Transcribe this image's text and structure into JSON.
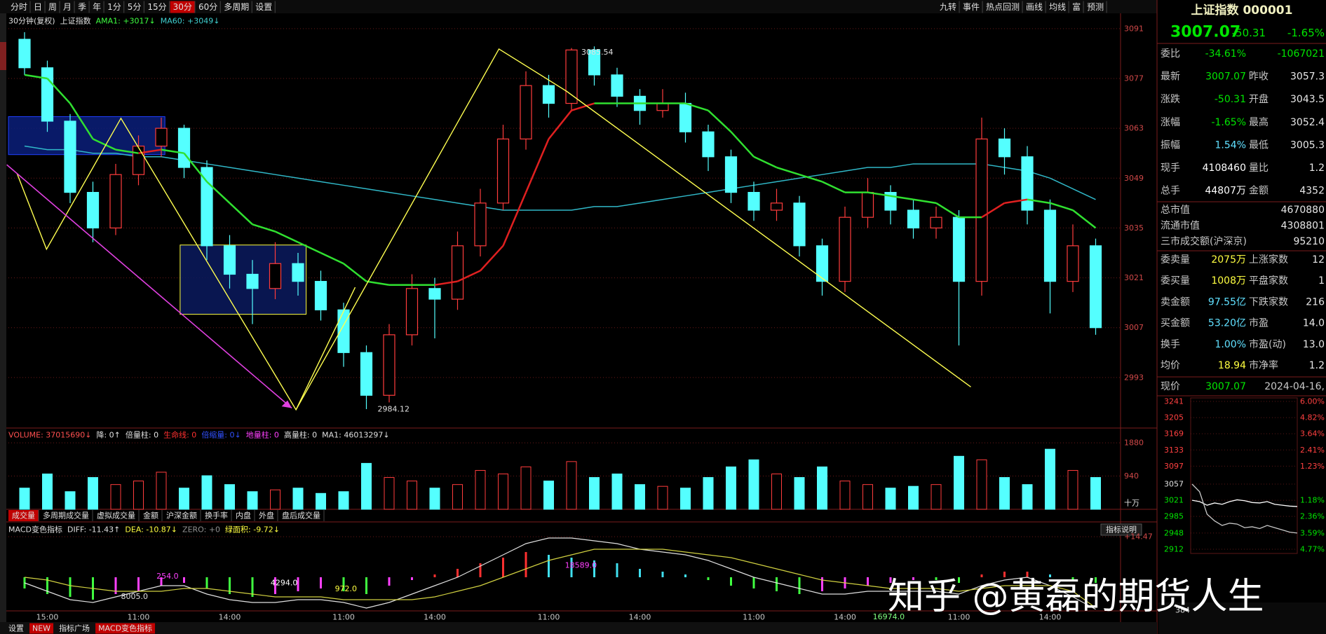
{
  "toolbar": {
    "left": [
      "分时",
      "日",
      "周",
      "月",
      "季",
      "年",
      "1分",
      "5分",
      "15分",
      {
        "text": "30分",
        "selected": true
      },
      "60分",
      "多周期",
      "设置"
    ],
    "right": [
      "九转",
      "事件",
      "热点回测",
      "画线",
      "均线",
      "富",
      "预测"
    ]
  },
  "main_chart": {
    "type": "candlestick",
    "legend": [
      {
        "text": "30分钟(复权)",
        "color": "#e0e0e0"
      },
      {
        "text": "上证指数",
        "color": "#e0e0e0"
      },
      {
        "text": "AMA1: +3017↓",
        "color": "#40ff40"
      },
      {
        "text": "MA60: +3049↓",
        "color": "#40d0d0"
      }
    ],
    "ylim": [
      2979,
      3095.1
    ],
    "yticks": [
      2993,
      3007,
      3021,
      3035,
      3049,
      3063,
      3077,
      3091
    ],
    "categories": [
      null,
      "15:00",
      null,
      null,
      null,
      "11:00",
      null,
      null,
      null,
      "14:00",
      null,
      null,
      null,
      null,
      "11:00",
      null,
      null,
      null,
      "14:00",
      null,
      null,
      null,
      null,
      "11:00",
      null,
      null,
      null,
      "14:00",
      null,
      null,
      null,
      null,
      "11:00",
      null,
      null,
      null,
      "14:00",
      null,
      null,
      null,
      null,
      "11:00",
      null,
      null,
      null,
      "14:00",
      null,
      null
    ],
    "candles": [
      [
        3088,
        3090,
        3078,
        3080
      ],
      [
        3080,
        3082,
        3062,
        3065
      ],
      [
        3065,
        3067,
        3042,
        3045
      ],
      [
        3045,
        3048,
        3031,
        3035
      ],
      [
        3035,
        3053,
        3033,
        3050
      ],
      [
        3050,
        3061,
        3047,
        3058
      ],
      [
        3058,
        3066,
        3055,
        3063
      ],
      [
        3063,
        3064,
        3049,
        3052
      ],
      [
        3052,
        3054,
        3026,
        3030
      ],
      [
        3030,
        3033,
        3018,
        3022
      ],
      [
        3022,
        3026,
        3008,
        3018
      ],
      [
        3018,
        3031,
        3015,
        3025
      ],
      [
        3025,
        3028,
        3016,
        3020
      ],
      [
        3020,
        3023,
        3009,
        3012
      ],
      [
        3012,
        3014,
        2996,
        3000
      ],
      [
        3000,
        3002,
        2984.12,
        2988
      ],
      [
        2988,
        3008,
        2986,
        3005
      ],
      [
        3005,
        3022,
        3002,
        3018
      ],
      [
        3018,
        3021,
        3004,
        3015
      ],
      [
        3015,
        3034,
        3012,
        3030
      ],
      [
        3030,
        3046,
        3027,
        3042
      ],
      [
        3042,
        3064,
        3040,
        3060
      ],
      [
        3060,
        3079,
        3057,
        3075
      ],
      [
        3075,
        3078,
        3066,
        3070
      ],
      [
        3070,
        3085.54,
        3068,
        3085
      ],
      [
        3085,
        3086,
        3075,
        3078
      ],
      [
        3078,
        3080,
        3069,
        3072
      ],
      [
        3072,
        3074,
        3064,
        3068
      ],
      [
        3068,
        3074,
        3066,
        3070
      ],
      [
        3070,
        3073,
        3059,
        3062
      ],
      [
        3062,
        3064,
        3051,
        3055
      ],
      [
        3055,
        3057,
        3042,
        3045
      ],
      [
        3045,
        3048,
        3037,
        3040
      ],
      [
        3040,
        3046,
        3037,
        3042
      ],
      [
        3042,
        3044,
        3027,
        3030
      ],
      [
        3030,
        3032,
        3016,
        3020
      ],
      [
        3020,
        3041,
        3017,
        3038
      ],
      [
        3038,
        3049,
        3035,
        3045
      ],
      [
        3045,
        3047,
        3036,
        3040
      ],
      [
        3040,
        3043,
        3032,
        3035
      ],
      [
        3035,
        3041,
        3032,
        3038
      ],
      [
        3038,
        3040,
        3002,
        3020
      ],
      [
        3020,
        3066,
        3016,
        3060
      ],
      [
        3060,
        3063,
        3050,
        3055
      ],
      [
        3055,
        3058,
        3036,
        3040
      ],
      [
        3040,
        3043,
        3011,
        3020
      ],
      [
        3020,
        3036,
        3017,
        3030
      ],
      [
        3030,
        3032,
        3005,
        3007
      ]
    ],
    "up_color": "#ff3c3c",
    "down_color": "#54ffff",
    "ama1": {
      "color": "#30e030",
      "rise_color": "#e02020",
      "values": [
        3078,
        3077,
        3070,
        3060,
        3057,
        3056,
        3057,
        3056,
        3048,
        3042,
        3036,
        3034,
        3031,
        3028,
        3025,
        3020,
        3019,
        3019,
        3019,
        3020,
        3023,
        3030,
        3045,
        3060,
        3068,
        3070,
        3070,
        3070,
        3070,
        3070,
        3068,
        3062,
        3055,
        3052,
        3050,
        3048,
        3045,
        3045,
        3044,
        3043,
        3042,
        3038,
        3038,
        3042,
        3043,
        3042,
        3040,
        3035
      ]
    },
    "ma60": {
      "color": "#30b8c8",
      "values": [
        3058,
        3057,
        3057,
        3056,
        3056,
        3055,
        3055,
        3054,
        3053,
        3052,
        3051,
        3050,
        3049,
        3048,
        3047,
        3046,
        3045,
        3044,
        3043,
        3042,
        3041,
        3040,
        3040,
        3040,
        3040,
        3041,
        3041,
        3042,
        3043,
        3044,
        3045,
        3046,
        3047,
        3048,
        3049,
        3050,
        3051,
        3052,
        3052,
        3053,
        3053,
        3053,
        3053,
        3052,
        3051,
        3049,
        3046,
        3043
      ]
    },
    "high_label": 3085.54,
    "low_label": 2984.12
  },
  "volume_chart": {
    "type": "bar",
    "legend": [
      {
        "text": "VOLUME: 37015690↓",
        "color": "#ff5050"
      },
      {
        "text": "降: 0↑",
        "color": "#e0e0e0"
      },
      {
        "text": "倍量柱: 0",
        "color": "#e0e0e0"
      },
      {
        "text": "生命线: 0",
        "color": "#ff3030"
      },
      {
        "text": "倍缩量: 0↓",
        "color": "#3050ff"
      },
      {
        "text": "地量柱: 0",
        "color": "#ff40ff"
      },
      {
        "text": "高量柱: 0",
        "color": "#e0e0e0"
      },
      {
        "text": "MA1: 46013297↓",
        "color": "#e0e0e0"
      }
    ],
    "ylim": [
      0,
      2100
    ],
    "yticks": [
      940,
      1880
    ],
    "unit": "十万",
    "values": [
      600,
      1000,
      500,
      900,
      700,
      800,
      1050,
      600,
      950,
      700,
      500,
      550,
      600,
      450,
      500,
      1300,
      900,
      800,
      600,
      700,
      1100,
      1000,
      1200,
      800,
      1350,
      900,
      1000,
      700,
      650,
      600,
      900,
      1200,
      1400,
      1000,
      900,
      1200,
      800,
      700,
      600,
      650,
      700,
      1500,
      1400,
      900,
      700,
      1700,
      1100,
      900
    ],
    "tabs": [
      {
        "text": "成交量",
        "selected": true
      },
      "多周期成交量",
      "虚拟成交量",
      "金额",
      "沪深金额",
      "换手率",
      "内盘",
      "外盘",
      "盘后成交量"
    ]
  },
  "macd_chart": {
    "type": "macd",
    "legend": [
      {
        "text": "MACD变色指标",
        "color": "#e0e0e0"
      },
      {
        "text": "DIFF: -11.43↑",
        "color": "#e0e0e0"
      },
      {
        "text": "DEA: -10.87↓",
        "color": "#ffff40"
      },
      {
        "text": "ZERO: +0",
        "color": "#909090"
      },
      {
        "text": "绿面积: -9.72↓",
        "color": "#ffff40"
      }
    ],
    "button": "指标说明",
    "ylim": [
      -12,
      18.5
    ],
    "yticks": [
      {
        "value": 14.47,
        "label": "+14.47"
      }
    ],
    "hist": [
      -4,
      -6,
      -7,
      -8,
      -6,
      -5,
      -3,
      -2,
      -4,
      -6,
      -7,
      -6,
      -5,
      -4,
      -5,
      -6,
      -3,
      -1,
      1,
      3,
      5,
      7,
      9,
      8,
      7,
      6,
      5,
      3,
      2,
      1,
      -1,
      -3,
      -4,
      -5,
      -6,
      -5,
      -4,
      -3,
      -2,
      -1,
      -1,
      -2,
      1,
      2,
      2,
      1,
      -1,
      -2
    ],
    "diff": {
      "color": "#e0e0e0",
      "values": [
        -2,
        -5,
        -8,
        -9,
        -7,
        -5,
        -3,
        -3,
        -6,
        -8,
        -9,
        -9,
        -8,
        -8,
        -9,
        -11,
        -9,
        -6,
        -3,
        0,
        4,
        8,
        12,
        14,
        14,
        13,
        12,
        10,
        9,
        8,
        6,
        3,
        0,
        -2,
        -4,
        -6,
        -6,
        -5,
        -5,
        -5,
        -5,
        -6,
        -3,
        -1,
        0,
        -3,
        -7,
        -11.43
      ]
    },
    "dea": {
      "color": "#d0d040",
      "values": [
        0,
        -1,
        -3,
        -4,
        -5,
        -5,
        -5,
        -4,
        -4,
        -5,
        -6,
        -7,
        -7,
        -7,
        -8,
        -8,
        -8,
        -8,
        -7,
        -5,
        -3,
        0,
        3,
        6,
        8,
        10,
        10,
        10,
        10,
        9,
        8,
        7,
        5,
        3,
        1,
        -1,
        -2,
        -3,
        -4,
        -4,
        -4,
        -5,
        -4,
        -3,
        -3,
        -3,
        -5,
        -10.87
      ]
    },
    "annotations": [
      {
        "text": "8005.0",
        "color": "#e0e0e0"
      },
      {
        "text": "254.0",
        "color": "#ff40ff"
      },
      {
        "text": "4294.0",
        "color": "#ffffff"
      },
      {
        "text": "972.0",
        "color": "#ffff40"
      },
      {
        "text": "18589.0",
        "color": "#ff40ff"
      },
      {
        "text": "16974.0",
        "color": "#80ff80"
      }
    ]
  },
  "footer": [
    "设置",
    {
      "text": "NEW",
      "badge": true
    },
    "指标广场",
    {
      "text": "MACD变色指标",
      "selected": true
    }
  ],
  "quote": {
    "title": "上证指数 000001",
    "price": "3007.07",
    "change": "-50.31",
    "pct": "-1.65%",
    "group1": [
      {
        "cells": [
          "委比",
          "-34.61%",
          "-1067021"
        ],
        "color": "#00e600"
      },
      {
        "cells": [
          "最新",
          "3007.07",
          "昨收",
          "3057.3"
        ],
        "color": "#00e600"
      },
      {
        "cells": [
          "涨跌",
          "-50.31",
          "开盘",
          "3043.5"
        ],
        "color": "#00e600"
      },
      {
        "cells": [
          "涨幅",
          "-1.65%",
          "最高",
          "3052.4"
        ],
        "color": "#00e600"
      },
      {
        "cells": [
          "振幅",
          "1.54%",
          "最低",
          "3005.3"
        ],
        "color": "#60e0ff"
      },
      {
        "cells": [
          "现手",
          "4108460",
          "量比",
          "1.2"
        ],
        "color": "#ffffff"
      },
      {
        "cells": [
          "总手",
          "44807万",
          "金额",
          "4352"
        ],
        "color": "#ffffff"
      }
    ],
    "group2": [
      {
        "cells": [
          "总市值",
          "4670880"
        ]
      },
      {
        "cells": [
          "流通市值",
          "4308801"
        ]
      },
      {
        "cells": [
          "三市成交额(沪深京)",
          "95210"
        ]
      }
    ],
    "group3": [
      {
        "cells": [
          "委卖量",
          "2075万",
          "上涨家数",
          "12"
        ],
        "color": "#ffff40"
      },
      {
        "cells": [
          "委买量",
          "1008万",
          "平盘家数",
          "1"
        ],
        "color": "#ffff40"
      },
      {
        "cells": [
          "卖金额",
          "97.55亿",
          "下跌家数",
          "216"
        ],
        "color": "#60e0ff"
      },
      {
        "cells": [
          "买金额",
          "53.20亿",
          "市盈",
          "14.0"
        ],
        "color": "#60e0ff"
      },
      {
        "cells": [
          "换手",
          "1.00%",
          "市盈(动)",
          "13.0"
        ],
        "color": "#60e0ff"
      },
      {
        "cells": [
          "均价",
          "18.94",
          "市净率",
          "1.2"
        ],
        "color": "#ffff40"
      }
    ],
    "now": {
      "cells": [
        "现价",
        "3007.07",
        "2024-04-16,"
      ],
      "color": "#00e600"
    }
  },
  "mini_chart": {
    "type": "line",
    "ylim": [
      2912,
      3241
    ],
    "rows": [
      {
        "price": 3241,
        "pct": "6.00%",
        "color": "#ff4040"
      },
      {
        "price": 3205,
        "pct": "4.82%",
        "color": "#ff4040"
      },
      {
        "price": 3169,
        "pct": "3.64%",
        "color": "#ff4040"
      },
      {
        "price": 3133,
        "pct": "2.41%",
        "color": "#ff4040"
      },
      {
        "price": 3097,
        "pct": "1.23%",
        "color": "#ff4040"
      },
      {
        "price": 3057
      },
      {
        "price": 3021,
        "pct": "1.18%",
        "color": "#00e600"
      },
      {
        "price": 2985,
        "pct": "2.36%",
        "color": "#00e600"
      },
      {
        "price": 2948,
        "pct": "3.59%",
        "color": "#00e600"
      },
      {
        "price": 2912,
        "pct": "4.77%",
        "color": "#00e600"
      }
    ],
    "series": [
      {
        "color": "#ffffff",
        "values": [
          3021,
          3018,
          3010,
          3015,
          3012,
          3018,
          3022,
          3020,
          3016,
          3015,
          3018,
          3012,
          3010,
          3008,
          3007
        ]
      },
      {
        "color": "#c8c8c8",
        "values": [
          3057,
          3040,
          2990,
          2975,
          2965,
          2970,
          2968,
          2960,
          2962,
          2958,
          2965,
          2960,
          2955,
          2950,
          2948
        ]
      }
    ],
    "volume_label": "384"
  },
  "watermark": "知乎 @黄磊的期货人生"
}
